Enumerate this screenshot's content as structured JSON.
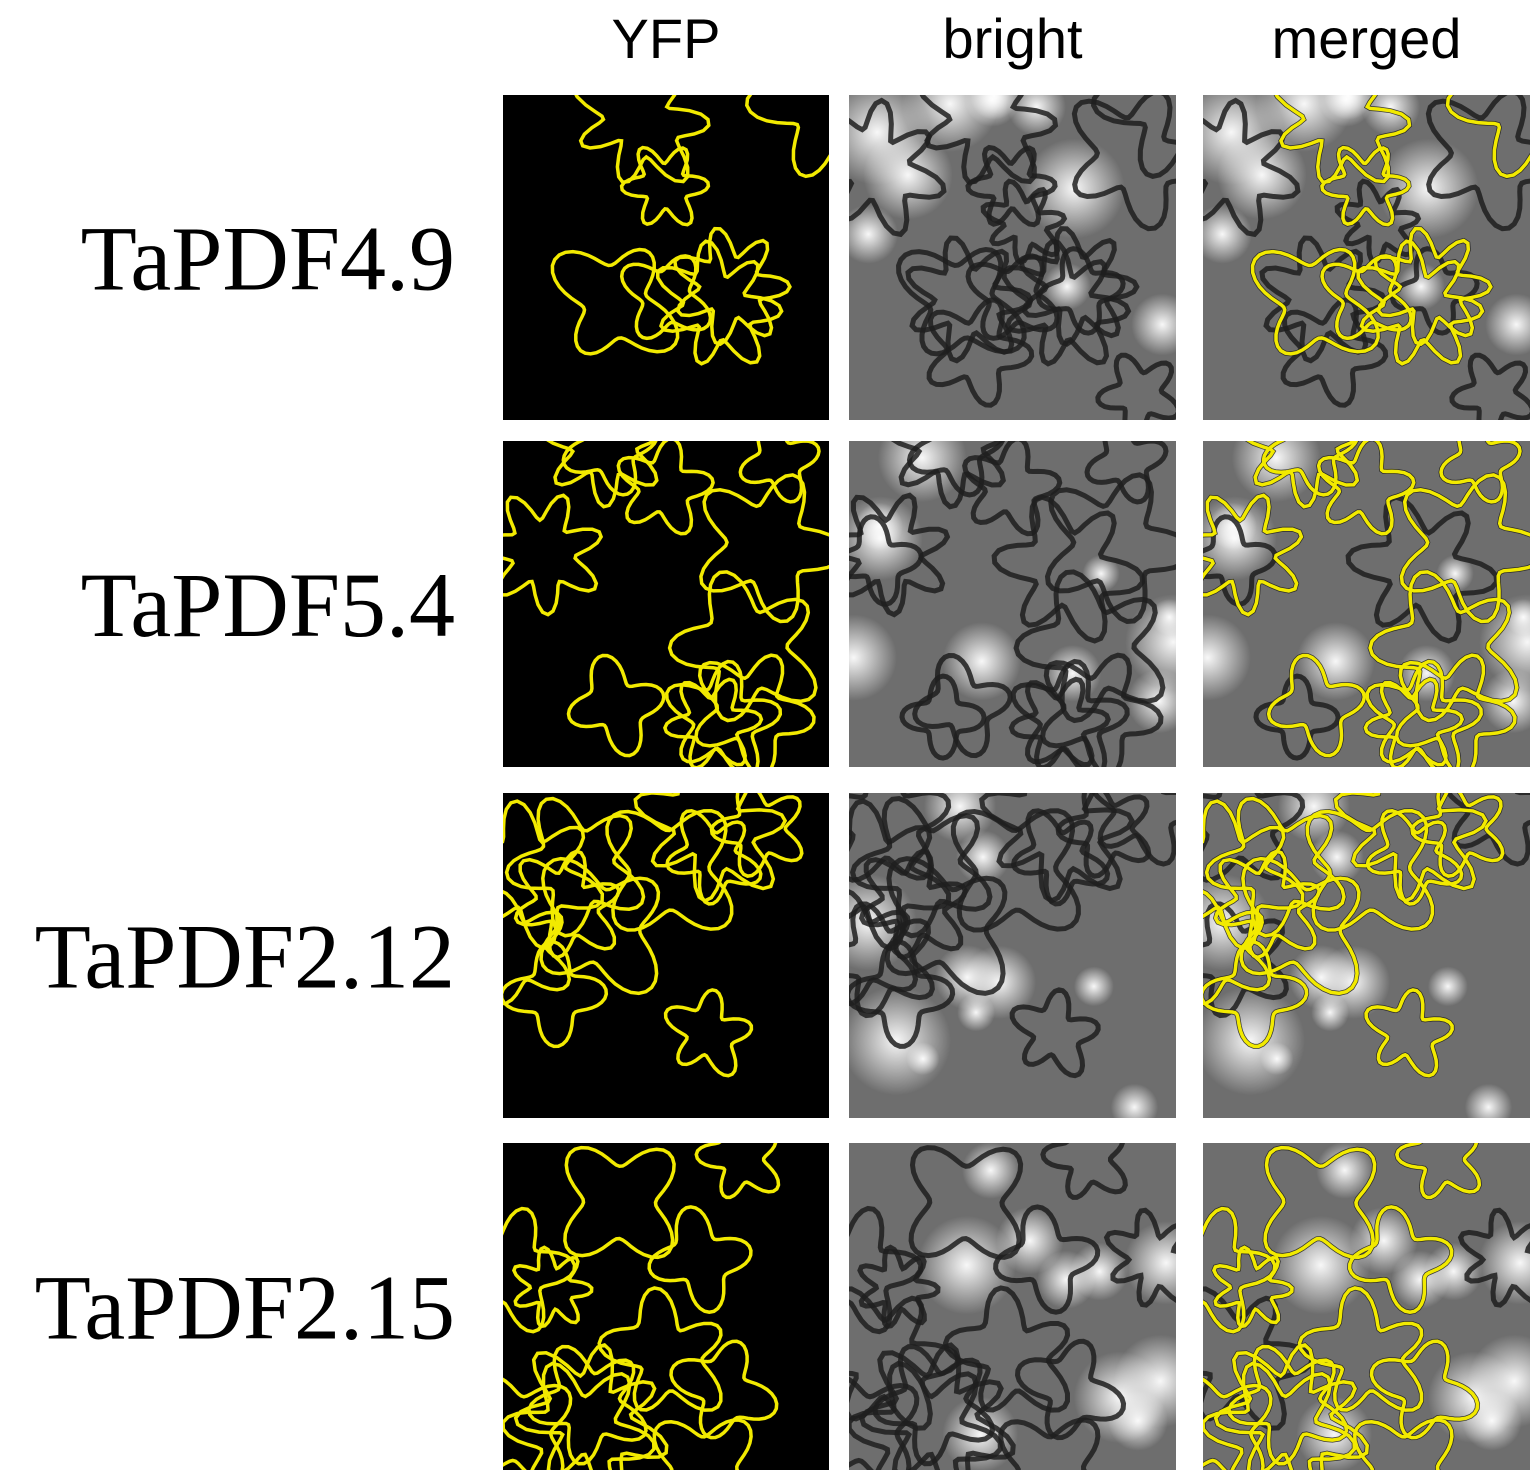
{
  "columns": [
    "YFP",
    "bright",
    "merged"
  ],
  "rows": [
    "TaPDF4.9",
    "TaPDF5.4",
    "TaPDF2.12",
    "TaPDF2.15"
  ]
}
